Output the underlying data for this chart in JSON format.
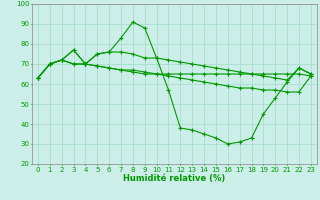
{
  "xlabel": "Humidité relative (%)",
  "bg_color": "#cceee8",
  "grid_color": "#aaddcc",
  "line_color": "#009900",
  "xlim": [
    -0.5,
    23.5
  ],
  "ylim": [
    20,
    100
  ],
  "yticks": [
    20,
    30,
    40,
    50,
    60,
    70,
    80,
    90,
    100
  ],
  "xticks": [
    0,
    1,
    2,
    3,
    4,
    5,
    6,
    7,
    8,
    9,
    10,
    11,
    12,
    13,
    14,
    15,
    16,
    17,
    18,
    19,
    20,
    21,
    22,
    23
  ],
  "lines": [
    [
      63,
      70,
      72,
      77,
      70,
      75,
      76,
      83,
      91,
      88,
      73,
      57,
      38,
      37,
      35,
      33,
      30,
      31,
      33,
      45,
      53,
      61,
      68,
      65
    ],
    [
      63,
      70,
      72,
      77,
      70,
      75,
      76,
      76,
      75,
      73,
      73,
      72,
      71,
      70,
      69,
      68,
      67,
      66,
      65,
      64,
      63,
      62,
      68,
      65
    ],
    [
      63,
      70,
      72,
      70,
      70,
      69,
      68,
      67,
      67,
      66,
      65,
      64,
      63,
      62,
      61,
      60,
      59,
      58,
      58,
      57,
      57,
      56,
      56,
      64
    ],
    [
      63,
      70,
      72,
      70,
      70,
      69,
      68,
      67,
      66,
      65,
      65,
      65,
      65,
      65,
      65,
      65,
      65,
      65,
      65,
      65,
      65,
      65,
      65,
      64
    ]
  ],
  "xlabel_fontsize": 6.0,
  "tick_fontsize": 5.0
}
